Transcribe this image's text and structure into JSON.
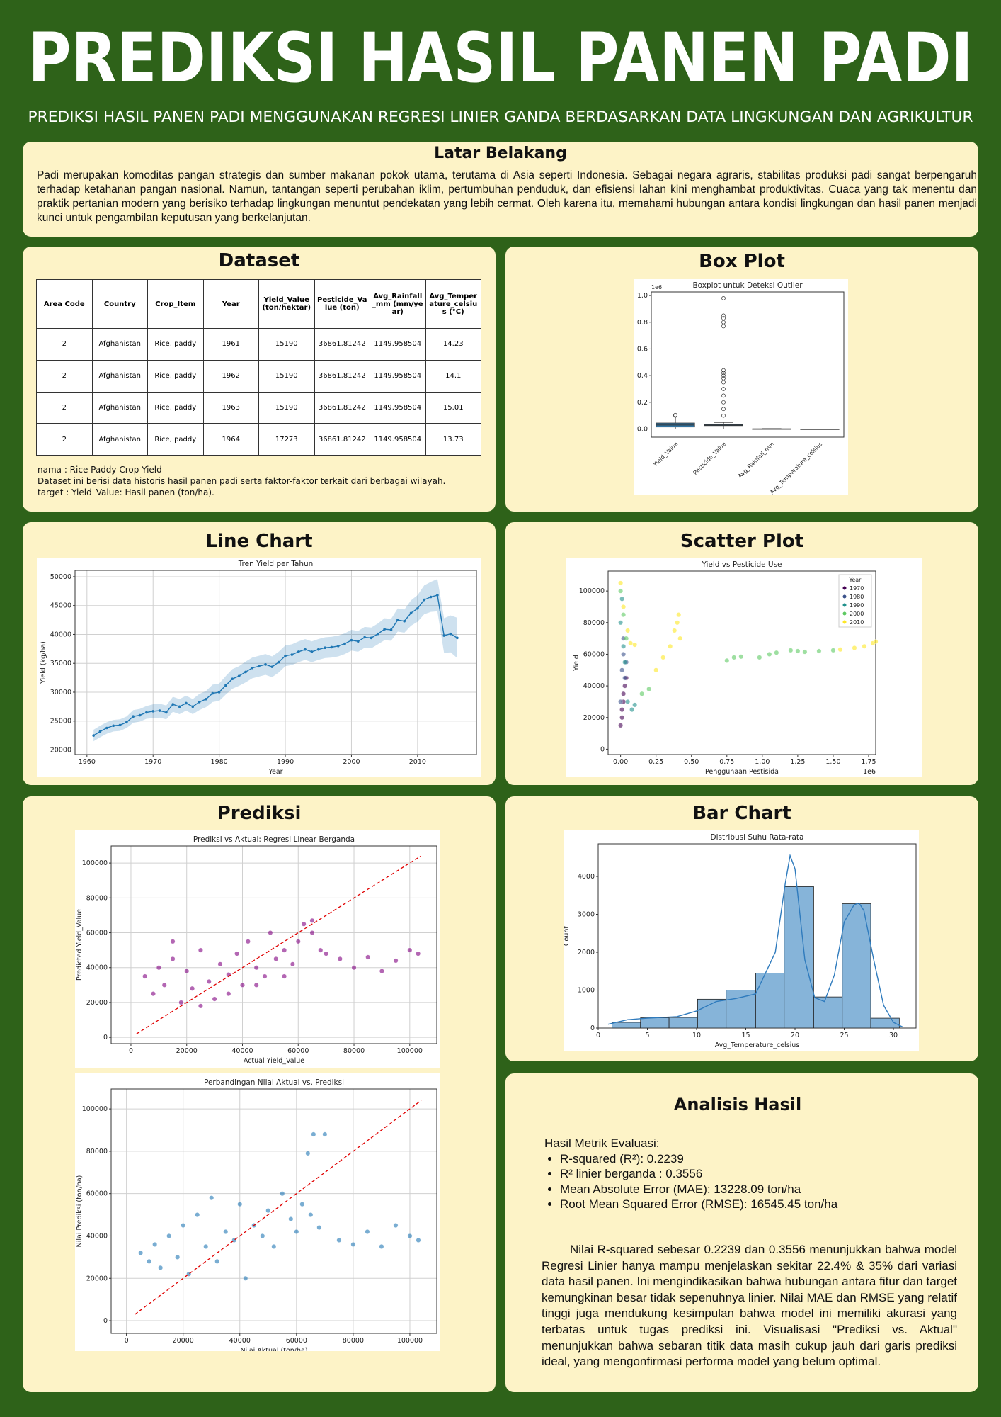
{
  "header": {
    "title": "PREDIKSI HASIL PANEN PADI",
    "subtitle": "PREDIKSI HASIL PANEN PADI MENGGUNAKAN REGRESI LINIER GANDA BERDASARKAN DATA LINGKUNGAN DAN AGRIKULTUR"
  },
  "background": {
    "heading": "Latar Belakang",
    "text": "Padi merupakan komoditas pangan strategis dan sumber makanan pokok utama, terutama di Asia seperti Indonesia. Sebagai negara agraris, stabilitas produksi padi sangat berpengaruh terhadap ketahanan pangan nasional. Namun, tantangan seperti perubahan iklim, pertumbuhan penduduk, dan efisiensi lahan kini menghambat produktivitas. Cuaca yang tak menentu dan praktik pertanian modern yang berisiko terhadap lingkungan menuntut pendekatan yang lebih cermat. Oleh karena itu, memahami hubungan antara kondisi lingkungan dan hasil panen menjadi kunci untuk pengambilan keputusan yang berkelanjutan."
  },
  "dataset": {
    "heading": "Dataset",
    "table": {
      "columns": [
        "Area Code",
        "Country",
        "Crop_Item",
        "Year",
        "Yield_Value (ton/hektar)",
        "Pesticide_Value (ton)",
        "Avg_Rainfall_mm (mm/year)",
        "Avg_Temperature_celsius (°C)"
      ],
      "rows": [
        [
          "2",
          "Afghanistan",
          "Rice, paddy",
          "1961",
          "15190",
          "36861.81242",
          "1149.958504",
          "14.23"
        ],
        [
          "2",
          "Afghanistan",
          "Rice, paddy",
          "1962",
          "15190",
          "36861.81242",
          "1149.958504",
          "14.1"
        ],
        [
          "2",
          "Afghanistan",
          "Rice, paddy",
          "1963",
          "15190",
          "36861.81242",
          "1149.958504",
          "15.01"
        ],
        [
          "2",
          "Afghanistan",
          "Rice, paddy",
          "1964",
          "17273",
          "36861.81242",
          "1149.958504",
          "13.73"
        ]
      ]
    },
    "notes": [
      "nama : Rice Paddy Crop Yield",
      "Dataset ini berisi data historis hasil panen padi serta faktor-faktor terkait dari berbagai wilayah.",
      "target : Yield_Value: Hasil panen (ton/ha)."
    ]
  },
  "sections": {
    "box_plot": "Box Plot",
    "line_chart": "Line Chart",
    "scatter_plot": "Scatter Plot",
    "prediction": "Prediksi",
    "bar_chart": "Bar Chart"
  },
  "analysis": {
    "heading": "Analisis Hasil",
    "metrics_title": "Hasil Metrik Evaluasi:",
    "metrics": [
      "R-squared (R²): 0.2239",
      "R² linier berganda : 0.3556",
      "Mean Absolute Error (MAE): 13228.09 ton/ha",
      "Root Mean Squared Error (RMSE): 16545.45 ton/ha"
    ],
    "text": "Nilai R-squared sebesar 0.2239 dan 0.3556 menunjukkan bahwa model Regresi Linier hanya mampu menjelaskan sekitar 22.4% & 35% dari variasi data hasil panen. Ini mengindikasikan bahwa hubungan antara fitur dan target kemungkinan besar tidak sepenuhnya linier. Nilai MAE dan RMSE yang relatif tinggi juga mendukung kesimpulan bahwa model ini memiliki akurasi yang terbatas untuk tugas prediksi ini. Visualisasi \"Prediksi vs. Aktual\" menunjukkan bahwa sebaran titik data masih cukup jauh dari garis prediksi ideal, yang mengonfirmasi performa model yang belum optimal."
  },
  "chart_data": [
    {
      "type": "box",
      "title": "Boxplot untuk Deteksi Outlier",
      "y_offset_label": "1e6",
      "color": "#3274a1",
      "categories": [
        "Yield_Value",
        "Pesticide_Value",
        "Avg_Rainfall_mm",
        "Avg_Temperature_celsius"
      ],
      "boxes": [
        {
          "whisker_low": 0.0,
          "q1": 0.015,
          "median": 0.03,
          "q3": 0.045,
          "whisker_high": 0.09,
          "outliers": [
            0.1,
            0.105
          ]
        },
        {
          "whisker_low": 0.0,
          "q1": 0.025,
          "median": 0.03,
          "q3": 0.035,
          "whisker_high": 0.05,
          "outliers": [
            0.1,
            0.15,
            0.2,
            0.25,
            0.3,
            0.35,
            0.38,
            0.4,
            0.42,
            0.44,
            0.77,
            0.8,
            0.83,
            0.85,
            0.98
          ]
        },
        {
          "whisker_low": 0.0,
          "q1": 0.0005,
          "median": 0.001,
          "q3": 0.0015,
          "whisker_high": 0.003,
          "outliers": []
        },
        {
          "whisker_low": 0.0,
          "q1": 0.0,
          "median": 0.0,
          "q3": 0.0,
          "whisker_high": 0.0,
          "outliers": []
        }
      ],
      "ylim": [
        -0.061,
        1.027
      ],
      "yticks": [
        {
          "value": 0,
          "label": "0.0"
        },
        0.2,
        0.4,
        0.6,
        0.8,
        {
          "value": 1,
          "label": "1.0"
        }
      ],
      "grid": false
    },
    {
      "type": "line",
      "title": "Tren Yield per Tahun",
      "x_label": "Year",
      "y_label": "Yield (kg/ha)",
      "color": "#1f77b4",
      "grid": true,
      "x": [
        1961,
        1962,
        1963,
        1964,
        1965,
        1966,
        1967,
        1968,
        1969,
        1970,
        1971,
        1972,
        1973,
        1974,
        1975,
        1976,
        1977,
        1978,
        1979,
        1980,
        1981,
        1982,
        1983,
        1984,
        1985,
        1986,
        1987,
        1988,
        1989,
        1990,
        1991,
        1992,
        1993,
        1994,
        1995,
        1996,
        1997,
        1998,
        1999,
        2000,
        2001,
        2002,
        2003,
        2004,
        2005,
        2006,
        2007,
        2008,
        2009,
        2010,
        2011,
        2012,
        2013,
        2014,
        2015,
        2016
      ],
      "values": [
        22500,
        23200,
        23800,
        24200,
        24300,
        24800,
        25800,
        26000,
        26500,
        26700,
        26800,
        26500,
        27900,
        27500,
        28100,
        27500,
        28300,
        28800,
        29800,
        30000,
        31200,
        32300,
        32800,
        33500,
        34200,
        34500,
        34800,
        34400,
        35200,
        36300,
        36500,
        37000,
        37400,
        37000,
        37400,
        37700,
        37800,
        38000,
        38400,
        39000,
        38800,
        39500,
        39400,
        40100,
        40900,
        40800,
        42500,
        42300,
        43700,
        44500,
        46000,
        46500,
        46800,
        39800,
        40100,
        39400
      ],
      "errors": [
        1000,
        1000,
        1000,
        1000,
        1000,
        1000,
        1100,
        1100,
        1100,
        1200,
        1200,
        1200,
        1300,
        1300,
        1300,
        1300,
        1400,
        1400,
        1500,
        1500,
        1600,
        1700,
        1700,
        1800,
        1800,
        1800,
        1800,
        1800,
        1800,
        1800,
        1800,
        1800,
        1800,
        1800,
        1800,
        1800,
        1800,
        1800,
        1800,
        1800,
        1800,
        1800,
        1800,
        1800,
        1900,
        1900,
        2000,
        2000,
        2200,
        2300,
        2500,
        2600,
        2800,
        3000,
        3200,
        3500
      ],
      "xlim": [
        1958.2,
        2018.9
      ],
      "xticks": [
        1960,
        1970,
        1980,
        1990,
        2000,
        2010
      ],
      "ylim": [
        19200,
        51100
      ],
      "yticks": [
        20000,
        25000,
        30000,
        35000,
        40000,
        45000,
        50000
      ]
    },
    {
      "type": "scatter",
      "title": "Yield vs Pesticide Use",
      "x_label": "Penggunaan Pestisida",
      "y_label": "Yield",
      "x_offset_label": "1e6",
      "legend_title": "Year",
      "legend": "upper right",
      "grid": false,
      "series": [
        {
          "name": "1970",
          "color": "#440154",
          "x": [
            0.0,
            0.01,
            0.02,
            0.03,
            0.01,
            0.02,
            0.04
          ],
          "values": [
            15000,
            25000,
            35000,
            40000,
            20000,
            30000,
            45000
          ]
        },
        {
          "name": "1980",
          "color": "#3b528b",
          "x": [
            0.0,
            0.01,
            0.02,
            0.03,
            0.02,
            0.04
          ],
          "values": [
            30000,
            50000,
            60000,
            45000,
            70000,
            55000
          ]
        },
        {
          "name": "1990",
          "color": "#21918c",
          "x": [
            0.0,
            0.01,
            0.02,
            0.03,
            0.05,
            0.08,
            0.1
          ],
          "values": [
            80000,
            95000,
            65000,
            55000,
            30000,
            25000,
            28000
          ]
        },
        {
          "name": "2000",
          "color": "#5ec962",
          "x": [
            0.0,
            0.02,
            0.04,
            0.15,
            0.2,
            0.75,
            0.8,
            0.85,
            0.98,
            1.05,
            1.1,
            1.2,
            1.25,
            1.3,
            1.4,
            1.5
          ],
          "values": [
            100000,
            85000,
            70000,
            35000,
            38000,
            56000,
            58000,
            58500,
            58000,
            60000,
            61000,
            62500,
            62000,
            61500,
            62000,
            62500
          ]
        },
        {
          "name": "2010",
          "color": "#fde725",
          "x": [
            0.0,
            0.02,
            0.05,
            0.07,
            0.1,
            0.25,
            0.3,
            0.35,
            0.38,
            0.4,
            0.41,
            0.42,
            1.55,
            1.65,
            1.72,
            1.78,
            1.8
          ],
          "values": [
            105000,
            90000,
            75000,
            67000,
            66000,
            50000,
            58000,
            65000,
            75000,
            80000,
            85000,
            70000,
            63000,
            64000,
            65000,
            67000,
            68000
          ]
        }
      ],
      "xlim": [
        -0.088,
        1.8
      ],
      "xticks": [
        {
          "value": 0,
          "label": "0.00"
        },
        0.25,
        {
          "value": 0.5,
          "label": "0.50"
        },
        0.75,
        {
          "value": 1,
          "label": "1.00"
        },
        1.25,
        {
          "value": 1.5,
          "label": "1.50"
        },
        1.75
      ],
      "ylim": [
        -3400,
        112600
      ],
      "yticks": [
        0,
        20000,
        40000,
        60000,
        80000,
        100000
      ]
    },
    {
      "type": "scatter",
      "title": "Prediksi vs Aktual: Regresi Linear Berganda",
      "x_label": "Actual Yield_Value",
      "y_label": "Predicted Yield_Value",
      "grid": true,
      "series": [
        {
          "color": "#800080",
          "x": [
            5000,
            8000,
            10000,
            12000,
            15000,
            18000,
            20000,
            22000,
            25000,
            28000,
            30000,
            32000,
            35000,
            38000,
            40000,
            42000,
            45000,
            48000,
            50000,
            52000,
            55000,
            58000,
            60000,
            62000,
            65000,
            68000,
            70000,
            75000,
            80000,
            85000,
            90000,
            95000,
            100000,
            103000,
            15000,
            25000,
            35000,
            45000,
            55000,
            65000
          ],
          "values": [
            35000,
            25000,
            40000,
            30000,
            45000,
            20000,
            38000,
            28000,
            50000,
            32000,
            22000,
            42000,
            36000,
            48000,
            30000,
            55000,
            40000,
            35000,
            60000,
            45000,
            50000,
            42000,
            55000,
            65000,
            60000,
            50000,
            48000,
            45000,
            40000,
            46000,
            38000,
            44000,
            50000,
            48000,
            55000,
            18000,
            25000,
            30000,
            35000,
            67000
          ]
        }
      ],
      "reference_line": {
        "color": "#e00000",
        "x": [
          2000,
          104000
        ],
        "values": [
          2000,
          104000
        ]
      },
      "xlim": [
        -7100,
        109700
      ],
      "xticks": [
        0,
        20000,
        40000,
        60000,
        80000,
        100000
      ],
      "ylim": [
        -3600,
        109800
      ],
      "yticks": [
        0,
        20000,
        40000,
        60000,
        80000,
        100000
      ]
    },
    {
      "type": "scatter",
      "title": "Perbandingan Nilai Aktual vs. Prediksi",
      "x_label": "Nilai Aktual (ton/ha)",
      "y_label": "Nilai Prediksi (ton/ha)",
      "grid": true,
      "series": [
        {
          "color": "#1f77b4",
          "x": [
            5000,
            8000,
            10000,
            12000,
            15000,
            18000,
            20000,
            22000,
            25000,
            28000,
            30000,
            32000,
            35000,
            38000,
            40000,
            42000,
            45000,
            48000,
            50000,
            52000,
            55000,
            58000,
            60000,
            62000,
            65000,
            68000,
            75000,
            80000,
            85000,
            90000,
            95000,
            100000,
            103000,
            64000,
            66000,
            70000
          ],
          "values": [
            32000,
            28000,
            36000,
            25000,
            40000,
            30000,
            45000,
            22000,
            50000,
            35000,
            58000,
            28000,
            42000,
            38000,
            55000,
            20000,
            45000,
            40000,
            52000,
            35000,
            60000,
            48000,
            42000,
            55000,
            50000,
            44000,
            38000,
            36000,
            42000,
            35000,
            45000,
            40000,
            38000,
            79000,
            88000,
            88000
          ]
        }
      ],
      "reference_line": {
        "color": "#e00000",
        "x": [
          3000,
          104000
        ],
        "values": [
          3000,
          104000
        ]
      },
      "xlim": [
        -5400,
        109500
      ],
      "xticks": [
        0,
        20000,
        40000,
        60000,
        80000,
        100000
      ],
      "ylim": [
        -6000,
        109400
      ],
      "yticks": [
        0,
        20000,
        40000,
        60000,
        80000,
        100000
      ]
    },
    {
      "type": "histogram",
      "title": "Distribusi Suhu Rata-rata",
      "x_label": "Avg_Temperature_celsius",
      "y_label": "Count",
      "color": "#86b4d9",
      "line_color": "#2f7bbd",
      "grid": false,
      "bins": [
        1.4,
        4.3,
        7.2,
        10.1,
        13.0,
        16.0,
        18.9,
        21.9,
        24.8,
        27.7,
        30.6
      ],
      "counts": [
        150,
        270,
        280,
        760,
        1000,
        1450,
        3730,
        820,
        3280,
        260
      ],
      "kde": {
        "x": [
          1,
          3,
          5,
          8,
          10,
          12,
          14,
          16,
          18,
          19,
          19.5,
          20,
          21,
          22,
          23,
          24,
          25,
          26,
          26.5,
          27,
          28,
          29,
          30,
          31
        ],
        "values": [
          100,
          220,
          260,
          300,
          450,
          700,
          780,
          900,
          2000,
          3800,
          4550,
          4200,
          1800,
          800,
          700,
          1400,
          2800,
          3250,
          3300,
          3100,
          1800,
          600,
          150,
          20
        ]
      },
      "xlim": [
        0,
        32.3
      ],
      "xticks": [
        0,
        5,
        10,
        15,
        20,
        25,
        30
      ],
      "ylim": [
        0,
        4860
      ],
      "yticks": [
        0,
        1000,
        2000,
        3000,
        4000
      ]
    }
  ]
}
